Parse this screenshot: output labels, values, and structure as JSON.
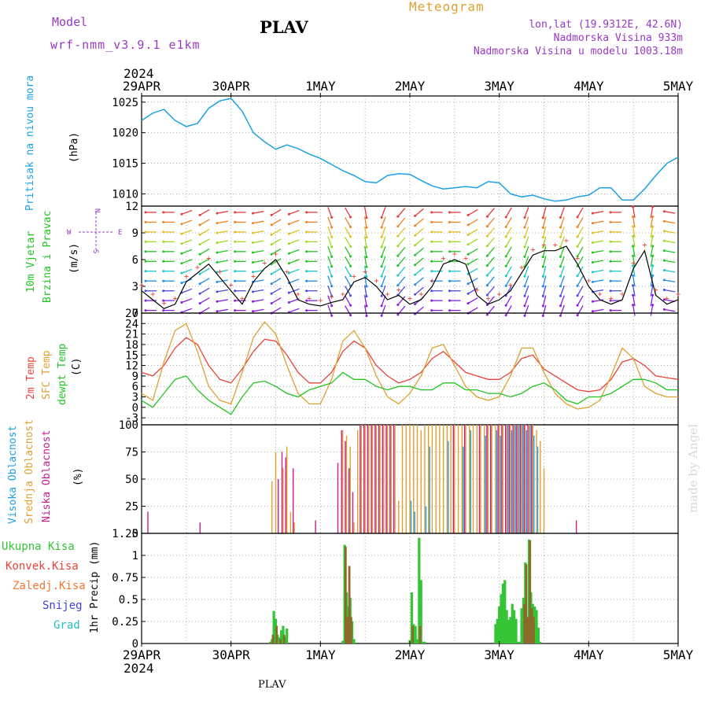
{
  "header": {
    "model_label": "Model",
    "model_name": "wrf-nmm_v3.9.1  e1km",
    "station": "PLAV",
    "meteogram": "Meteogram",
    "lonlat": "lon,lat (19.9312E, 42.6N)",
    "elev": "Nadmorska Visina 933m",
    "elev_model": "Nadmorska Visina u modelu 1003.18m",
    "year": "2024",
    "footer_station": "PLAV",
    "credit": "made by Angel"
  },
  "colors": {
    "pressure": "#1ea0e6",
    "temp2m": "#e8443a",
    "sfc": "#e0a030",
    "dewpt": "#22c422",
    "high_cloud": "#1ea0e6",
    "mid_cloud": "#e0a030",
    "low_cloud": "#cc1c8c",
    "rain_total": "#35c435",
    "rain_conv": "#e8443a",
    "rain_snow_melt": "#f07830",
    "snow": "#4040e0",
    "graupel": "#20c0c0",
    "gust_line": "#000000"
  },
  "x_ticks": [
    "29APR",
    "30APR",
    "1MAY",
    "2MAY",
    "3MAY",
    "4MAY",
    "5MAY"
  ],
  "panels": {
    "pressure": {
      "label": "Pritisak na nivou mora",
      "unit": "(hPa)",
      "yticks": [
        "1010",
        "1015",
        "1020",
        "1025"
      ]
    },
    "wind": {
      "label1": "10m Vjetar",
      "label2": "Brzina i Pravac",
      "unit": "(m/s)",
      "yticks": [
        "0",
        "3",
        "6",
        "9",
        "12"
      ],
      "compass": {
        "n": "N",
        "s": "S",
        "w": "W",
        "e": "E"
      }
    },
    "temp": {
      "label1": "2m Temp",
      "label2": "SFC Temp",
      "label3": "dewpt Temp",
      "unit": "(C)",
      "yticks": [
        "-3",
        "0",
        "3",
        "6",
        "9",
        "12",
        "15",
        "18",
        "21",
        "24",
        "27"
      ]
    },
    "cloud": {
      "label1": "Visoka Oblacnost",
      "label2": "Srednja Oblacnost",
      "label3": "Niska Oblacnost",
      "unit": "(%)",
      "yticks": [
        "0",
        "25",
        "50",
        "75",
        "100"
      ]
    },
    "precip": {
      "legend": [
        "Ukupna Kisa",
        "Konvek.Kisa",
        "Zaledj.Kisa",
        "Snijeg",
        "Grad"
      ],
      "unit": "1hr Precip (mm)",
      "yticks": [
        "0",
        "0.25",
        "0.5",
        "0.75",
        "1",
        "1.25"
      ]
    }
  },
  "chart_data": [
    {
      "type": "line",
      "name": "pressure",
      "ylim": [
        1008,
        1026
      ],
      "x_days": [
        0,
        0.125,
        0.25,
        0.375,
        0.5,
        0.625,
        0.75,
        0.875,
        1.0,
        1.125,
        1.25,
        1.375,
        1.5,
        1.625,
        1.75,
        1.875,
        2.0,
        2.125,
        2.25,
        2.375,
        2.5,
        2.625,
        2.75,
        2.875,
        3.0,
        3.125,
        3.25,
        3.375,
        3.5,
        3.625,
        3.75,
        3.875,
        4.0,
        4.125,
        4.25,
        4.375,
        4.5,
        4.625,
        4.75,
        4.875,
        5.0,
        5.125,
        5.25,
        5.375,
        5.5,
        5.625,
        5.75,
        5.875,
        6.0
      ],
      "values": [
        1022.0,
        1023.2,
        1023.8,
        1022.0,
        1021.0,
        1021.5,
        1024.0,
        1025.2,
        1025.6,
        1023.5,
        1020.0,
        1018.5,
        1017.3,
        1018.0,
        1017.4,
        1016.5,
        1015.8,
        1014.8,
        1013.8,
        1013.0,
        1012.0,
        1011.8,
        1013.0,
        1013.3,
        1013.2,
        1012.2,
        1011.3,
        1010.8,
        1011.0,
        1011.2,
        1011.0,
        1012.0,
        1011.8,
        1010.0,
        1009.5,
        1009.8,
        1009.2,
        1008.8,
        1009.0,
        1009.5,
        1009.8,
        1011.0,
        1011.0,
        1009.0,
        1009.0,
        1010.8,
        1013.0,
        1015.0,
        1016.0
      ]
    },
    {
      "type": "line",
      "name": "wind gust",
      "ylim": [
        0,
        12
      ],
      "x_days": [
        0,
        0.125,
        0.25,
        0.375,
        0.5,
        0.625,
        0.75,
        0.875,
        1.0,
        1.125,
        1.25,
        1.375,
        1.5,
        1.625,
        1.75,
        1.875,
        2.0,
        2.125,
        2.25,
        2.375,
        2.5,
        2.625,
        2.75,
        2.875,
        3.0,
        3.125,
        3.25,
        3.375,
        3.5,
        3.625,
        3.75,
        3.875,
        4.0,
        4.125,
        4.25,
        4.375,
        4.5,
        4.625,
        4.75,
        4.875,
        5.0,
        5.125,
        5.25,
        5.375,
        5.5,
        5.625,
        5.75,
        5.875,
        6.0
      ],
      "values": [
        2.5,
        1.5,
        0.5,
        1.0,
        3.5,
        4.5,
        5.5,
        4.0,
        2.5,
        1.0,
        3.5,
        5.0,
        6.0,
        4.0,
        1.5,
        1.0,
        0.8,
        1.2,
        1.5,
        3.5,
        4.0,
        3.0,
        1.5,
        2.0,
        1.0,
        1.5,
        3.0,
        5.5,
        6.0,
        5.5,
        2.0,
        1.0,
        1.5,
        2.5,
        4.5,
        6.5,
        7.0,
        7.0,
        7.5,
        5.5,
        3.0,
        1.5,
        1.0,
        1.5,
        5.0,
        7.0,
        2.0,
        1.0,
        1.5
      ]
    },
    {
      "type": "line",
      "name": "temperature",
      "ylim": [
        -5,
        27
      ],
      "x_days": [
        0,
        0.125,
        0.25,
        0.375,
        0.5,
        0.625,
        0.75,
        0.875,
        1.0,
        1.125,
        1.25,
        1.375,
        1.5,
        1.625,
        1.75,
        1.875,
        2.0,
        2.125,
        2.25,
        2.375,
        2.5,
        2.625,
        2.75,
        2.875,
        3.0,
        3.125,
        3.25,
        3.375,
        3.5,
        3.625,
        3.75,
        3.875,
        4.0,
        4.125,
        4.25,
        4.375,
        4.5,
        4.625,
        4.75,
        4.875,
        5.0,
        5.125,
        5.25,
        5.375,
        5.5,
        5.625,
        5.75,
        5.875,
        6.0
      ],
      "series": [
        {
          "name": "2m Temp",
          "values": [
            10,
            9,
            12,
            17,
            20,
            18,
            12,
            8,
            7,
            11,
            16,
            19.5,
            19,
            15,
            10,
            7,
            7,
            10,
            16,
            19,
            17,
            12,
            9,
            7,
            8,
            10,
            14,
            16,
            13,
            10,
            9,
            8,
            8,
            10,
            14,
            15,
            11,
            9,
            7,
            5,
            4.5,
            5,
            8,
            13,
            14,
            12,
            9,
            8.5,
            8
          ]
        },
        {
          "name": "SFC Temp",
          "values": [
            4,
            2,
            13,
            22,
            24,
            16,
            6,
            2,
            1,
            10,
            20,
            24.5,
            21,
            12,
            4,
            1,
            1,
            8,
            19,
            22,
            17,
            9,
            3,
            1,
            4,
            9,
            17,
            18,
            12,
            6,
            3,
            2,
            3,
            9,
            17,
            17,
            10,
            4,
            1,
            -0.5,
            0,
            2,
            9,
            17,
            14,
            6,
            4,
            3,
            3
          ]
        },
        {
          "name": "dewpt Temp",
          "values": [
            2,
            0,
            4,
            8,
            9,
            5,
            2,
            0,
            -2,
            3,
            7,
            7.5,
            6,
            4,
            3,
            5,
            6,
            7,
            10,
            8,
            8,
            6,
            5,
            6,
            6,
            5,
            5,
            7,
            7,
            5,
            5,
            4,
            4,
            3,
            4,
            6,
            7,
            5,
            2,
            1,
            3,
            3,
            4,
            6,
            8,
            8,
            7,
            5,
            5
          ]
        }
      ]
    },
    {
      "type": "bar",
      "name": "cloud cover",
      "ylim": [
        0,
        100
      ],
      "series": [
        {
          "name": "Visoka Oblacnost",
          "x_hours": [
            72,
            73,
            76,
            77,
            82,
            86,
            88,
            92,
            95,
            96,
            98,
            99,
            100,
            101,
            102,
            103,
            104,
            105,
            106
          ],
          "values": [
            30,
            20,
            25,
            80,
            85,
            80,
            95,
            90,
            95,
            90,
            100,
            95,
            100,
            100,
            100,
            95,
            100,
            90,
            80
          ]
        },
        {
          "name": "Srednja Oblacnost",
          "x_hours": [
            35,
            36,
            38,
            39,
            40,
            41,
            54,
            55,
            56,
            57,
            58,
            59,
            60,
            61,
            62,
            63,
            64,
            65,
            66,
            67,
            68,
            69,
            70,
            71,
            72,
            73,
            74,
            75,
            76,
            77,
            78,
            79,
            80,
            81,
            82,
            83,
            84,
            85,
            86,
            87,
            88,
            89,
            90,
            91,
            92,
            93,
            94,
            95,
            96,
            97,
            98,
            99,
            100,
            101,
            102,
            103,
            104,
            105,
            106,
            107,
            108
          ],
          "values": [
            48,
            75,
            60,
            80,
            20,
            10,
            95,
            90,
            80,
            10,
            95,
            100,
            100,
            100,
            100,
            100,
            100,
            100,
            100,
            100,
            100,
            30,
            100,
            100,
            100,
            100,
            100,
            95,
            100,
            100,
            100,
            100,
            100,
            100,
            100,
            100,
            100,
            100,
            100,
            100,
            100,
            100,
            100,
            100,
            100,
            100,
            100,
            100,
            100,
            100,
            100,
            100,
            100,
            100,
            100,
            100,
            100,
            100,
            95,
            85,
            60
          ]
        },
        {
          "name": "Niska Oblacnost",
          "x_hours": [
            2,
            16,
            37,
            38,
            39,
            41,
            47,
            53,
            54,
            55,
            56,
            57,
            59,
            60,
            61,
            62,
            63,
            64,
            65,
            66,
            67,
            68,
            84,
            87,
            91,
            93,
            94,
            96,
            97,
            98,
            99,
            100,
            101,
            102,
            103,
            104,
            105,
            117
          ],
          "values": [
            20,
            10,
            50,
            75,
            70,
            60,
            12,
            65,
            95,
            85,
            60,
            38,
            100,
            100,
            100,
            100,
            100,
            100,
            100,
            100,
            100,
            100,
            100,
            100,
            100,
            100,
            100,
            100,
            100,
            100,
            100,
            100,
            100,
            100,
            100,
            100,
            100,
            12
          ]
        }
      ]
    },
    {
      "type": "bar",
      "name": "1hr precip",
      "ylim": [
        0,
        1.25
      ],
      "series": [
        {
          "name": "Ukupna Kisa",
          "x_hours": [
            34.5,
            35,
            35.5,
            36,
            36.5,
            37,
            37.5,
            38,
            38.5,
            39,
            54,
            54.5,
            55,
            55.5,
            56,
            56.5,
            57,
            72,
            72.5,
            73,
            73.5,
            74,
            74.5,
            75,
            75.5,
            76,
            95,
            95.5,
            96,
            96.5,
            97,
            97.5,
            98,
            98.5,
            99,
            99.5,
            100,
            100.5,
            101,
            101.5,
            102,
            102.5,
            103,
            103.5,
            104,
            104.5,
            105,
            105.5,
            106,
            106.5,
            107
          ],
          "values": [
            0.02,
            0.05,
            0.37,
            0.28,
            0.1,
            0.07,
            0.15,
            0.2,
            0.08,
            0.17,
            0.03,
            1.12,
            0.58,
            0.42,
            0.52,
            0.25,
            0.05,
            0.04,
            0.58,
            0.22,
            0.2,
            0.05,
            1.2,
            0.72,
            0.02,
            0.02,
            0.22,
            0.28,
            0.42,
            0.56,
            0.68,
            0.72,
            0.38,
            0.27,
            0.3,
            0.45,
            0.38,
            0.28,
            0.02,
            0.02,
            0.4,
            0.52,
            0.92,
            0.3,
            1.18,
            0.58,
            0.45,
            0.42,
            0.38,
            0.18,
            0.02
          ]
        },
        {
          "name": "Konvek.Kisa",
          "x_hours": [
            34.5,
            35,
            36,
            37,
            38,
            54.5,
            55,
            55.5,
            56,
            72.5,
            74.5,
            102.5,
            103,
            103.5,
            104,
            104.5,
            105
          ],
          "values": [
            0.01,
            0.1,
            0.2,
            0.05,
            0.1,
            1.1,
            0.3,
            0.88,
            0.3,
            0.2,
            0.2,
            0.45,
            0.9,
            0.3,
            1.17,
            0.4,
            0.3
          ]
        }
      ]
    },
    {
      "type": "other",
      "name": "10m wind arrows",
      "ylim": [
        0,
        12
      ],
      "x_days": [
        0,
        0.2,
        0.4,
        0.6,
        0.8,
        1.0,
        1.2,
        1.4,
        1.6,
        1.8,
        2.0,
        2.2,
        2.4,
        2.6,
        2.8,
        3.0,
        3.2,
        3.4,
        3.6,
        3.8,
        4.0,
        4.2,
        4.4,
        4.6,
        4.8,
        5.0,
        5.2,
        5.4,
        5.6,
        5.8
      ],
      "direction_deg_series": [
        270,
        270,
        250,
        240,
        260,
        270,
        260,
        240,
        250,
        270,
        160,
        150,
        170,
        200,
        220,
        230,
        270,
        270,
        240,
        220,
        210,
        200,
        195,
        200,
        210,
        260,
        270,
        350,
        10,
        280
      ]
    }
  ]
}
